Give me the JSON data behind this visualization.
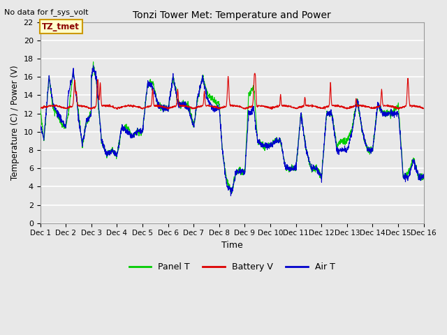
{
  "title": "Tonzi Tower Met: Temperature and Power",
  "xlabel": "Time",
  "ylabel": "Temperature (C) / Power (V)",
  "top_left_text": "No data for f_sys_volt",
  "annotation_text": "TZ_tmet",
  "ylim": [
    0,
    22
  ],
  "yticks": [
    0,
    2,
    4,
    6,
    8,
    10,
    12,
    14,
    16,
    18,
    20,
    22
  ],
  "xtick_labels": [
    "Dec 1",
    "Dec 2",
    "Dec 3",
    "Dec 4",
    "Dec 5",
    "Dec 6",
    "Dec 7",
    "Dec 8",
    "Dec 9",
    "Dec 10",
    "Dec 11",
    "Dec 12",
    "Dec 13",
    "Dec 14",
    "Dec 15",
    "Dec 16"
  ],
  "legend_entries": [
    "Panel T",
    "Battery V",
    "Air T"
  ],
  "legend_colors": [
    "#00cc00",
    "#dd0000",
    "#0000cc"
  ],
  "bg_color": "#e8e8e8",
  "grid_color": "#ffffff",
  "annotation_bg": "#ffffcc",
  "annotation_border": "#cc9900"
}
